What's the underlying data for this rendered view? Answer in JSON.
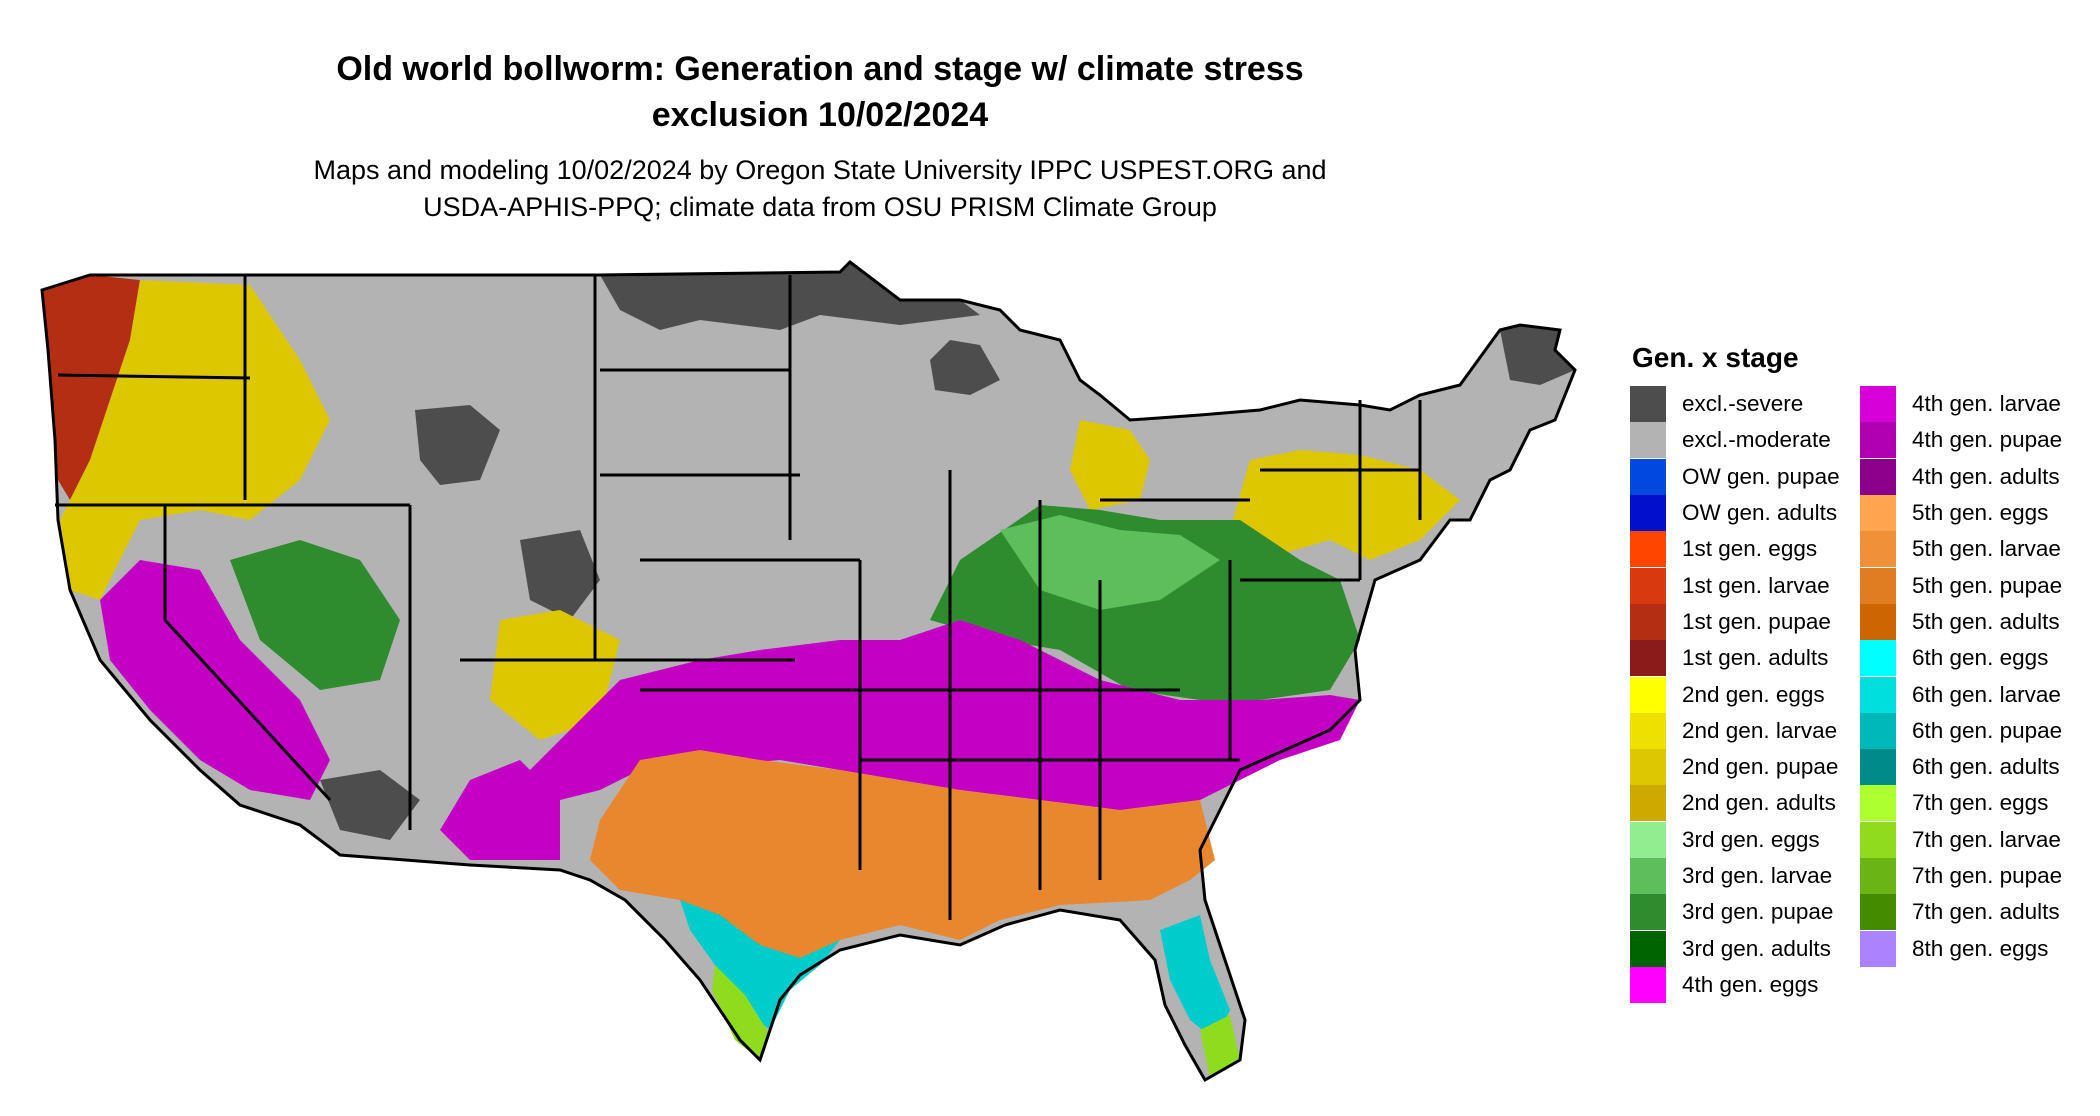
{
  "title_line1": "Old world bollworm: Generation and stage w/ climate stress",
  "title_line2": "exclusion 10/02/2024",
  "subtitle_line1": "Maps and modeling 10/02/2024 by Oregon State University IPPC USPEST.ORG and",
  "subtitle_line2": "USDA-APHIS-PPQ; climate data from OSU PRISM Climate Group",
  "legend": {
    "title": "Gen. x stage",
    "col1": [
      {
        "label": "excl.-severe",
        "color": "#4d4d4d"
      },
      {
        "label": "excl.-moderate",
        "color": "#b3b3b3"
      },
      {
        "label": "OW gen. pupae",
        "color": "#0048e0"
      },
      {
        "label": "OW gen. adults",
        "color": "#0010cc"
      },
      {
        "label": "1st gen. eggs",
        "color": "#ff4500"
      },
      {
        "label": "1st gen. larvae",
        "color": "#d8390f"
      },
      {
        "label": "1st gen. pupae",
        "color": "#b42e14"
      },
      {
        "label": "1st gen. adults",
        "color": "#8b1a1a"
      },
      {
        "label": "2nd gen. eggs",
        "color": "#ffff00"
      },
      {
        "label": "2nd gen. larvae",
        "color": "#eee000"
      },
      {
        "label": "2nd gen. pupae",
        "color": "#ddc700"
      },
      {
        "label": "2nd gen. adults",
        "color": "#cdaa00"
      },
      {
        "label": "3rd gen. eggs",
        "color": "#90ee90"
      },
      {
        "label": "3rd gen. larvae",
        "color": "#5cbf5c"
      },
      {
        "label": "3rd gen. pupae",
        "color": "#2e8b2e"
      },
      {
        "label": "3rd gen. adults",
        "color": "#006400"
      },
      {
        "label": "4th gen. eggs",
        "color": "#ff00ff"
      }
    ],
    "col2": [
      {
        "label": "4th gen. larvae",
        "color": "#d800d8"
      },
      {
        "label": "4th gen. pupae",
        "color": "#b000b0"
      },
      {
        "label": "4th gen. adults",
        "color": "#8b008b"
      },
      {
        "label": "5th gen. eggs",
        "color": "#ffa54f"
      },
      {
        "label": "5th gen. larvae",
        "color": "#f0913a"
      },
      {
        "label": "5th gen. pupae",
        "color": "#e07d22"
      },
      {
        "label": "5th gen. adults",
        "color": "#cd6600"
      },
      {
        "label": "6th gen. eggs",
        "color": "#00ffff"
      },
      {
        "label": "6th gen. larvae",
        "color": "#00dddd"
      },
      {
        "label": "6th gen. pupae",
        "color": "#00b8b8"
      },
      {
        "label": "6th gen. adults",
        "color": "#008b8b"
      },
      {
        "label": "7th gen. eggs",
        "color": "#adff2f"
      },
      {
        "label": "7th gen. larvae",
        "color": "#8fdc1e"
      },
      {
        "label": "7th gen. pupae",
        "color": "#6ab414"
      },
      {
        "label": "7th gen. adults",
        "color": "#458b00"
      },
      {
        "label": "8th gen. eggs",
        "color": "#ab82ff"
      }
    ]
  }
}
